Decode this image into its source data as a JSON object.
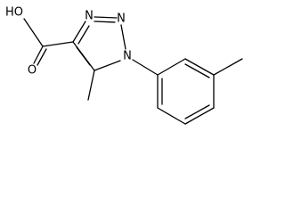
{
  "atoms": [
    {
      "label": "HO"
    },
    {
      "label": "O"
    },
    {
      "label": "N"
    },
    {
      "label": "N"
    },
    {
      "label": "N"
    }
  ]
}
